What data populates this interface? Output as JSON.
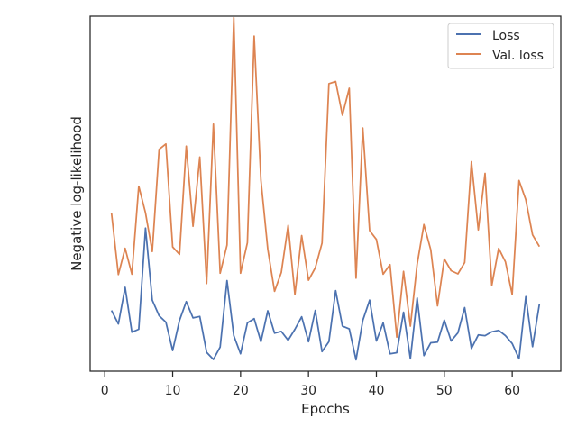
{
  "chart_data": {
    "type": "line",
    "title": "",
    "xlabel": "Epochs",
    "ylabel": "Negative log-likelihood",
    "xlim": [
      -2.15,
      67.15
    ],
    "ylim": [
      0,
      1
    ],
    "x_ticks": [
      0,
      10,
      20,
      30,
      40,
      50,
      60
    ],
    "grid": false,
    "legend_position": "top-right",
    "x": [
      1,
      2,
      3,
      4,
      5,
      6,
      7,
      8,
      9,
      10,
      11,
      12,
      13,
      14,
      15,
      16,
      17,
      18,
      19,
      20,
      21,
      22,
      23,
      24,
      25,
      26,
      27,
      28,
      29,
      30,
      31,
      32,
      33,
      34,
      35,
      36,
      37,
      38,
      39,
      40,
      41,
      42,
      43,
      44,
      45,
      46,
      47,
      48,
      49,
      50,
      51,
      52,
      53,
      54,
      55,
      56,
      57,
      58,
      59,
      60,
      61,
      62,
      63,
      64
    ],
    "series": [
      {
        "name": "Loss",
        "color": "#4c72b0",
        "values": [
          0.171,
          0.133,
          0.236,
          0.11,
          0.118,
          0.403,
          0.2,
          0.156,
          0.138,
          0.058,
          0.143,
          0.196,
          0.15,
          0.154,
          0.053,
          0.033,
          0.068,
          0.255,
          0.1,
          0.049,
          0.136,
          0.148,
          0.083,
          0.17,
          0.107,
          0.112,
          0.087,
          0.118,
          0.153,
          0.083,
          0.171,
          0.055,
          0.083,
          0.227,
          0.127,
          0.119,
          0.032,
          0.143,
          0.2,
          0.085,
          0.136,
          0.049,
          0.052,
          0.166,
          0.035,
          0.206,
          0.044,
          0.08,
          0.082,
          0.144,
          0.085,
          0.108,
          0.179,
          0.064,
          0.102,
          0.1,
          0.111,
          0.115,
          0.1,
          0.078,
          0.035,
          0.21,
          0.069,
          0.189
        ]
      },
      {
        "name": "Val. loss",
        "color": "#dd8452",
        "values": [
          0.445,
          0.272,
          0.346,
          0.273,
          0.521,
          0.446,
          0.337,
          0.625,
          0.64,
          0.35,
          0.329,
          0.634,
          0.408,
          0.603,
          0.247,
          0.696,
          0.276,
          0.355,
          0.996,
          0.276,
          0.362,
          0.944,
          0.538,
          0.344,
          0.225,
          0.278,
          0.411,
          0.216,
          0.382,
          0.256,
          0.291,
          0.361,
          0.81,
          0.816,
          0.721,
          0.797,
          0.262,
          0.685,
          0.396,
          0.371,
          0.273,
          0.3,
          0.096,
          0.281,
          0.127,
          0.301,
          0.413,
          0.342,
          0.184,
          0.316,
          0.283,
          0.274,
          0.306,
          0.59,
          0.398,
          0.557,
          0.242,
          0.346,
          0.308,
          0.216,
          0.537,
          0.483,
          0.384,
          0.351
        ]
      }
    ]
  }
}
